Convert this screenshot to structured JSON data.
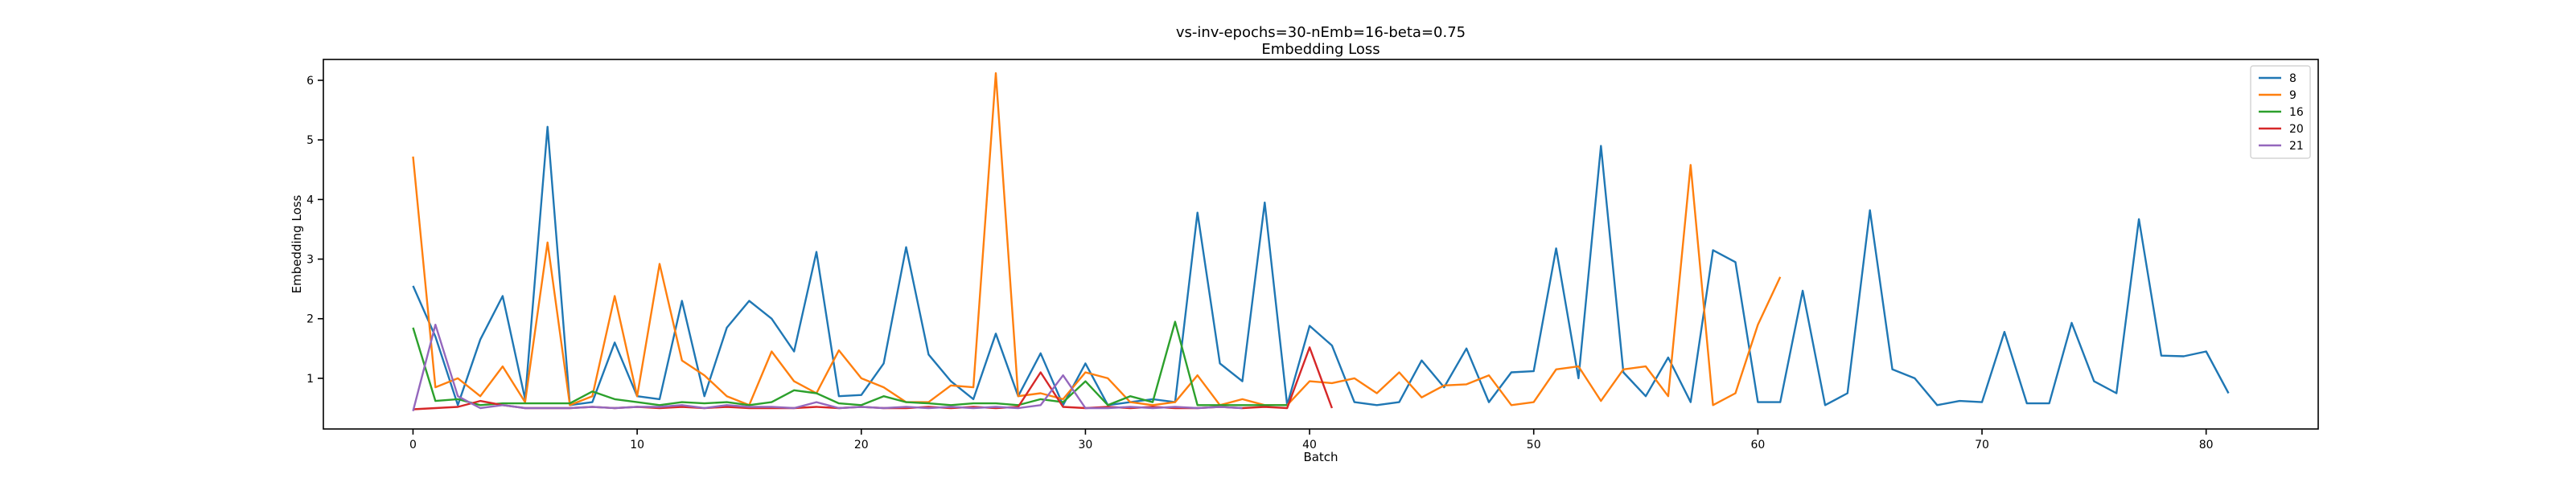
{
  "chart_data": {
    "type": "line",
    "title": "vs-inv-epochs=30-nEmb=16-beta=0.75",
    "subtitle": "Embedding Loss",
    "xlabel": "Batch",
    "ylabel": "Embedding Loss",
    "xlim": [
      -4,
      85
    ],
    "ylim": [
      0.15,
      6.35
    ],
    "xticks": [
      0,
      10,
      20,
      30,
      40,
      50,
      60,
      70,
      80
    ],
    "yticks": [
      1,
      2,
      3,
      4,
      5,
      6
    ],
    "grid": false,
    "legend_position": "top-right",
    "series": [
      {
        "name": "8",
        "color": "#1f77b4",
        "values": [
          2.55,
          1.7,
          0.55,
          1.65,
          2.38,
          0.65,
          5.22,
          0.55,
          0.6,
          1.6,
          0.7,
          0.65,
          2.3,
          0.7,
          1.85,
          2.3,
          2.0,
          1.45,
          3.12,
          0.7,
          0.72,
          1.25,
          3.2,
          1.4,
          0.95,
          0.65,
          1.75,
          0.7,
          1.42,
          0.55,
          1.25,
          0.55,
          0.6,
          0.65,
          0.6,
          3.78,
          1.25,
          0.95,
          3.95,
          0.55,
          1.88,
          1.55,
          0.6,
          0.55,
          0.6,
          1.3,
          0.85,
          1.5,
          0.6,
          1.1,
          1.12,
          3.18,
          1.0,
          4.9,
          1.1,
          0.7,
          1.35,
          0.6,
          3.15,
          2.95,
          0.6,
          0.6,
          2.47,
          0.55,
          0.75,
          3.82,
          1.15,
          1.0,
          0.55,
          0.62,
          0.6,
          1.78,
          0.58,
          0.58,
          1.93,
          0.95,
          0.75,
          3.67,
          1.38,
          1.37,
          1.45,
          0.75
        ]
      },
      {
        "name": "9",
        "color": "#ff7f0e",
        "values": [
          4.72,
          0.85,
          1.0,
          0.7,
          1.2,
          0.6,
          3.28,
          0.55,
          0.7,
          2.38,
          0.7,
          2.92,
          1.3,
          1.05,
          0.7,
          0.55,
          1.45,
          0.95,
          0.75,
          1.47,
          1.0,
          0.85,
          0.6,
          0.6,
          0.88,
          0.85,
          6.12,
          0.7,
          0.75,
          0.65,
          1.1,
          1.0,
          0.6,
          0.55,
          0.6,
          1.05,
          0.55,
          0.65,
          0.55,
          0.55,
          0.95,
          0.92,
          1.0,
          0.75,
          1.1,
          0.68,
          0.88,
          0.9,
          1.05,
          0.55,
          0.6,
          1.15,
          1.2,
          0.62,
          1.15,
          1.2,
          0.7,
          4.58,
          0.55,
          0.75,
          1.9,
          2.7
        ]
      },
      {
        "name": "16",
        "color": "#2ca02c",
        "values": [
          1.85,
          0.62,
          0.65,
          0.55,
          0.58,
          0.58,
          0.58,
          0.58,
          0.78,
          0.65,
          0.6,
          0.55,
          0.6,
          0.58,
          0.6,
          0.55,
          0.6,
          0.8,
          0.75,
          0.58,
          0.55,
          0.7,
          0.6,
          0.58,
          0.55,
          0.58,
          0.58,
          0.55,
          0.65,
          0.6,
          0.95,
          0.55,
          0.7,
          0.6,
          1.95,
          0.55,
          0.55,
          0.55,
          0.55,
          0.55
        ]
      },
      {
        "name": "20",
        "color": "#d62728",
        "values": [
          0.48,
          0.5,
          0.52,
          0.62,
          0.55,
          0.5,
          0.5,
          0.5,
          0.52,
          0.5,
          0.52,
          0.5,
          0.52,
          0.5,
          0.52,
          0.5,
          0.5,
          0.5,
          0.52,
          0.5,
          0.52,
          0.5,
          0.5,
          0.52,
          0.5,
          0.52,
          0.5,
          0.52,
          1.1,
          0.52,
          0.5,
          0.52,
          0.5,
          0.52,
          0.5,
          0.5,
          0.52,
          0.5,
          0.52,
          0.5,
          1.52,
          0.5
        ]
      },
      {
        "name": "21",
        "color": "#9467bd",
        "values": [
          0.45,
          1.9,
          0.7,
          0.5,
          0.55,
          0.5,
          0.5,
          0.5,
          0.52,
          0.5,
          0.52,
          0.52,
          0.55,
          0.5,
          0.55,
          0.52,
          0.52,
          0.5,
          0.6,
          0.5,
          0.52,
          0.5,
          0.52,
          0.5,
          0.52,
          0.5,
          0.52,
          0.5,
          0.55,
          1.05,
          0.5,
          0.5,
          0.52,
          0.5,
          0.52,
          0.5,
          0.52,
          0.5
        ]
      }
    ]
  }
}
